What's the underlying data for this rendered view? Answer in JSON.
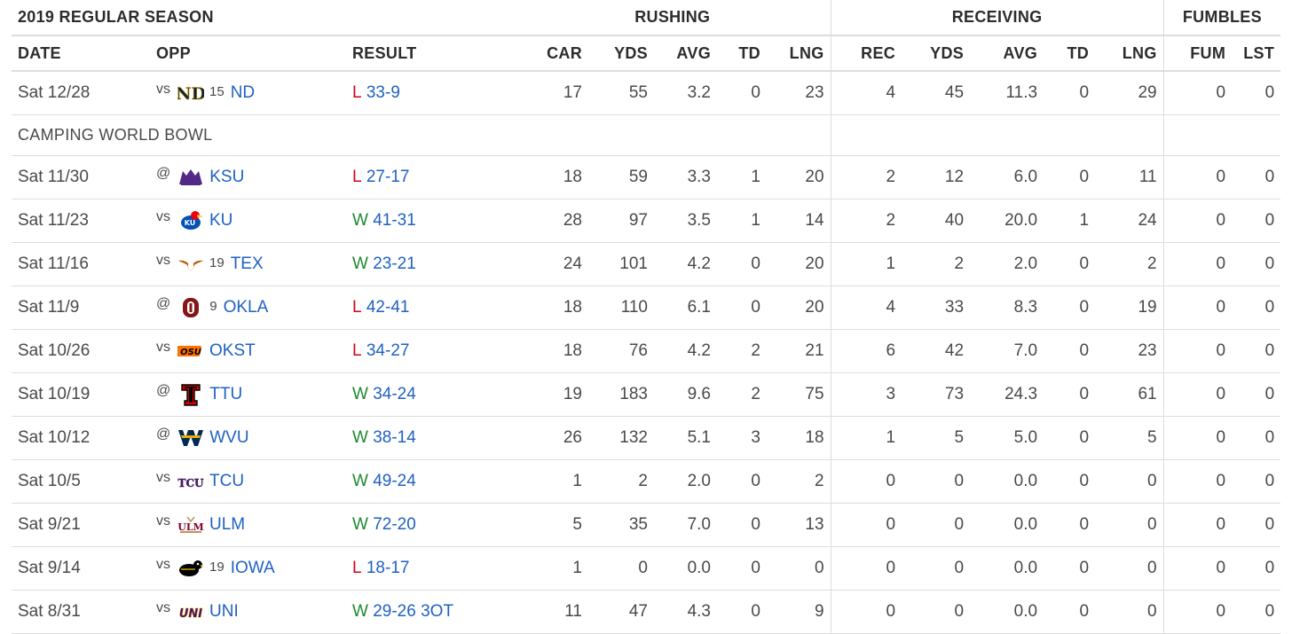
{
  "section_title": "2019 REGULAR SEASON",
  "groups": {
    "rushing": "RUSHING",
    "receiving": "RECEIVING",
    "fumbles": "FUMBLES"
  },
  "columns": [
    "DATE",
    "OPP",
    "RESULT",
    "CAR",
    "YDS",
    "AVG",
    "TD",
    "LNG",
    "REC",
    "YDS",
    "AVG",
    "TD",
    "LNG",
    "FUM",
    "LST"
  ],
  "bowl_note": "CAMPING WORLD BOWL",
  "colors": {
    "win": "#1c8a2e",
    "loss": "#d0021b",
    "link": "#1f61c2"
  },
  "games": [
    {
      "date": "Sat 12/28",
      "ha": "vs",
      "logo": "nd-logo-icon",
      "rank": "15",
      "opp": "ND",
      "wl": "L",
      "score": "33-9",
      "car": "17",
      "ryds": "55",
      "ravg": "3.2",
      "rtd": "0",
      "rlng": "23",
      "rec": "4",
      "cyds": "45",
      "cavg": "11.3",
      "ctd": "0",
      "clng": "29",
      "fum": "0",
      "lst": "0"
    },
    {
      "date": "Sat 11/30",
      "ha": "@",
      "logo": "ksu-logo-icon",
      "rank": "",
      "opp": "KSU",
      "wl": "L",
      "score": "27-17",
      "car": "18",
      "ryds": "59",
      "ravg": "3.3",
      "rtd": "1",
      "rlng": "20",
      "rec": "2",
      "cyds": "12",
      "cavg": "6.0",
      "ctd": "0",
      "clng": "11",
      "fum": "0",
      "lst": "0"
    },
    {
      "date": "Sat 11/23",
      "ha": "vs",
      "logo": "ku-logo-icon",
      "rank": "",
      "opp": "KU",
      "wl": "W",
      "score": "41-31",
      "car": "28",
      "ryds": "97",
      "ravg": "3.5",
      "rtd": "1",
      "rlng": "14",
      "rec": "2",
      "cyds": "40",
      "cavg": "20.0",
      "ctd": "1",
      "clng": "24",
      "fum": "0",
      "lst": "0"
    },
    {
      "date": "Sat 11/16",
      "ha": "vs",
      "logo": "tex-logo-icon",
      "rank": "19",
      "opp": "TEX",
      "wl": "W",
      "score": "23-21",
      "car": "24",
      "ryds": "101",
      "ravg": "4.2",
      "rtd": "0",
      "rlng": "20",
      "rec": "1",
      "cyds": "2",
      "cavg": "2.0",
      "ctd": "0",
      "clng": "2",
      "fum": "0",
      "lst": "0"
    },
    {
      "date": "Sat 11/9",
      "ha": "@",
      "logo": "okla-logo-icon",
      "rank": "9",
      "opp": "OKLA",
      "wl": "L",
      "score": "42-41",
      "car": "18",
      "ryds": "110",
      "ravg": "6.1",
      "rtd": "0",
      "rlng": "20",
      "rec": "4",
      "cyds": "33",
      "cavg": "8.3",
      "ctd": "0",
      "clng": "19",
      "fum": "0",
      "lst": "0"
    },
    {
      "date": "Sat 10/26",
      "ha": "vs",
      "logo": "okst-logo-icon",
      "rank": "",
      "opp": "OKST",
      "wl": "L",
      "score": "34-27",
      "car": "18",
      "ryds": "76",
      "ravg": "4.2",
      "rtd": "2",
      "rlng": "21",
      "rec": "6",
      "cyds": "42",
      "cavg": "7.0",
      "ctd": "0",
      "clng": "23",
      "fum": "0",
      "lst": "0"
    },
    {
      "date": "Sat 10/19",
      "ha": "@",
      "logo": "ttu-logo-icon",
      "rank": "",
      "opp": "TTU",
      "wl": "W",
      "score": "34-24",
      "car": "19",
      "ryds": "183",
      "ravg": "9.6",
      "rtd": "2",
      "rlng": "75",
      "rec": "3",
      "cyds": "73",
      "cavg": "24.3",
      "ctd": "0",
      "clng": "61",
      "fum": "0",
      "lst": "0"
    },
    {
      "date": "Sat 10/12",
      "ha": "@",
      "logo": "wvu-logo-icon",
      "rank": "",
      "opp": "WVU",
      "wl": "W",
      "score": "38-14",
      "car": "26",
      "ryds": "132",
      "ravg": "5.1",
      "rtd": "3",
      "rlng": "18",
      "rec": "1",
      "cyds": "5",
      "cavg": "5.0",
      "ctd": "0",
      "clng": "5",
      "fum": "0",
      "lst": "0"
    },
    {
      "date": "Sat 10/5",
      "ha": "vs",
      "logo": "tcu-logo-icon",
      "rank": "",
      "opp": "TCU",
      "wl": "W",
      "score": "49-24",
      "car": "1",
      "ryds": "2",
      "ravg": "2.0",
      "rtd": "0",
      "rlng": "2",
      "rec": "0",
      "cyds": "0",
      "cavg": "0.0",
      "ctd": "0",
      "clng": "0",
      "fum": "0",
      "lst": "0"
    },
    {
      "date": "Sat 9/21",
      "ha": "vs",
      "logo": "ulm-logo-icon",
      "rank": "",
      "opp": "ULM",
      "wl": "W",
      "score": "72-20",
      "car": "5",
      "ryds": "35",
      "ravg": "7.0",
      "rtd": "0",
      "rlng": "13",
      "rec": "0",
      "cyds": "0",
      "cavg": "0.0",
      "ctd": "0",
      "clng": "0",
      "fum": "0",
      "lst": "0"
    },
    {
      "date": "Sat 9/14",
      "ha": "vs",
      "logo": "iowa-logo-icon",
      "rank": "19",
      "opp": "IOWA",
      "wl": "L",
      "score": "18-17",
      "car": "1",
      "ryds": "0",
      "ravg": "0.0",
      "rtd": "0",
      "rlng": "0",
      "rec": "0",
      "cyds": "0",
      "cavg": "0.0",
      "ctd": "0",
      "clng": "0",
      "fum": "0",
      "lst": "0"
    },
    {
      "date": "Sat 8/31",
      "ha": "vs",
      "logo": "uni-logo-icon",
      "rank": "",
      "opp": "UNI",
      "wl": "W",
      "score": "29-26 3OT",
      "car": "11",
      "ryds": "47",
      "ravg": "4.3",
      "rtd": "0",
      "rlng": "9",
      "rec": "0",
      "cyds": "0",
      "cavg": "0.0",
      "ctd": "0",
      "clng": "0",
      "fum": "0",
      "lst": "0"
    }
  ]
}
